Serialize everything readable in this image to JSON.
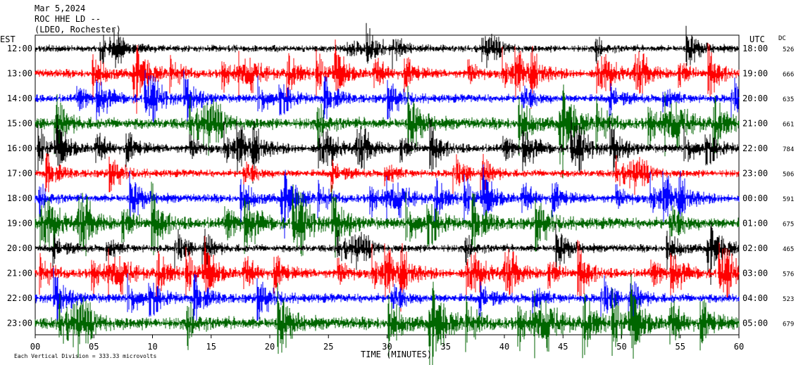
{
  "header": {
    "date": "Mar 5,2024",
    "station": "ROC HHE LD --",
    "network": "(LDEO, Rochester)"
  },
  "chart_data": {
    "type": "line",
    "left_axis_title": "EST",
    "right_axis_title": "UTC",
    "dc_title": "DC",
    "xlabel": "TIME (MINUTES)",
    "x_ticks": [
      0,
      5,
      10,
      15,
      20,
      25,
      30,
      35,
      40,
      45,
      50,
      55,
      60
    ],
    "x_tick_labels": [
      "00",
      "05",
      "10",
      "15",
      "20",
      "25",
      "30",
      "35",
      "40",
      "45",
      "50",
      "55",
      "60"
    ],
    "xlim": [
      0,
      60
    ],
    "est_labels": [
      "12:00",
      "13:00",
      "14:00",
      "15:00",
      "16:00",
      "17:00",
      "18:00",
      "19:00",
      "20:00",
      "21:00",
      "22:00",
      "23:00"
    ],
    "utc_labels": [
      "18:00",
      "19:00",
      "20:00",
      "21:00",
      "22:00",
      "23:00",
      "00:00",
      "01:00",
      "02:00",
      "03:00",
      "04:00",
      "05:00"
    ],
    "dc_values": [
      "526",
      "666",
      "635",
      "661",
      "784",
      "506",
      "591",
      "675",
      "465",
      "576",
      "523",
      "679"
    ],
    "trace_colors": [
      "#000000",
      "#ff0000",
      "#0000ff",
      "#006600"
    ],
    "trace_noise": [
      0.45,
      0.55,
      0.55,
      0.75,
      0.55,
      0.5,
      0.55,
      0.75,
      0.5,
      0.6,
      0.6,
      0.8
    ],
    "footnote": "Each Vertical Division =  333.33 microvolts"
  }
}
